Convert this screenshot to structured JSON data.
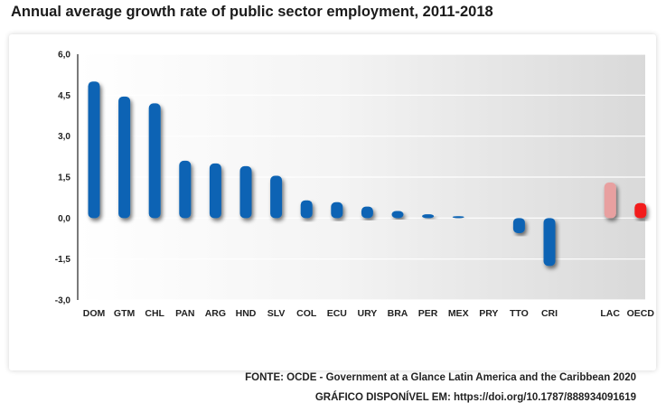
{
  "chart_data": {
    "type": "bar",
    "title": "Annual average growth rate of public sector employment, 2011-2018",
    "xlabel": "",
    "ylabel": "",
    "ylim": [
      -3.0,
      6.0
    ],
    "yticks": [
      "6,0",
      "4,5",
      "3,0",
      "1,5",
      "0,0",
      "-1,5",
      "-3,0"
    ],
    "ytick_values": [
      6.0,
      4.5,
      3.0,
      1.5,
      0.0,
      -1.5,
      -3.0
    ],
    "categories": [
      "DOM",
      "GTM",
      "CHL",
      "PAN",
      "ARG",
      "HND",
      "SLV",
      "COL",
      "ECU",
      "URY",
      "BRA",
      "PER",
      "MEX",
      "PRY",
      "TTO",
      "CRI",
      "LAC",
      "OECD"
    ],
    "values": [
      5.0,
      4.45,
      4.2,
      2.1,
      2.0,
      1.9,
      1.55,
      0.65,
      0.58,
      0.42,
      0.26,
      0.14,
      0.07,
      0.0,
      -0.55,
      -1.75,
      1.3,
      0.55
    ],
    "colors": {
      "default": "#0a64b4",
      "LAC": "#e8a0a0",
      "OECD": "#f21a1a"
    },
    "grid": true,
    "legend": "none"
  },
  "source": {
    "fonte": "FONTE: OCDE - Government at a Glance Latin America and the Caribbean 2020",
    "grafico": "GRÁFICO DISPONÍVEL EM: https://doi.org/10.1787/888934091619"
  }
}
